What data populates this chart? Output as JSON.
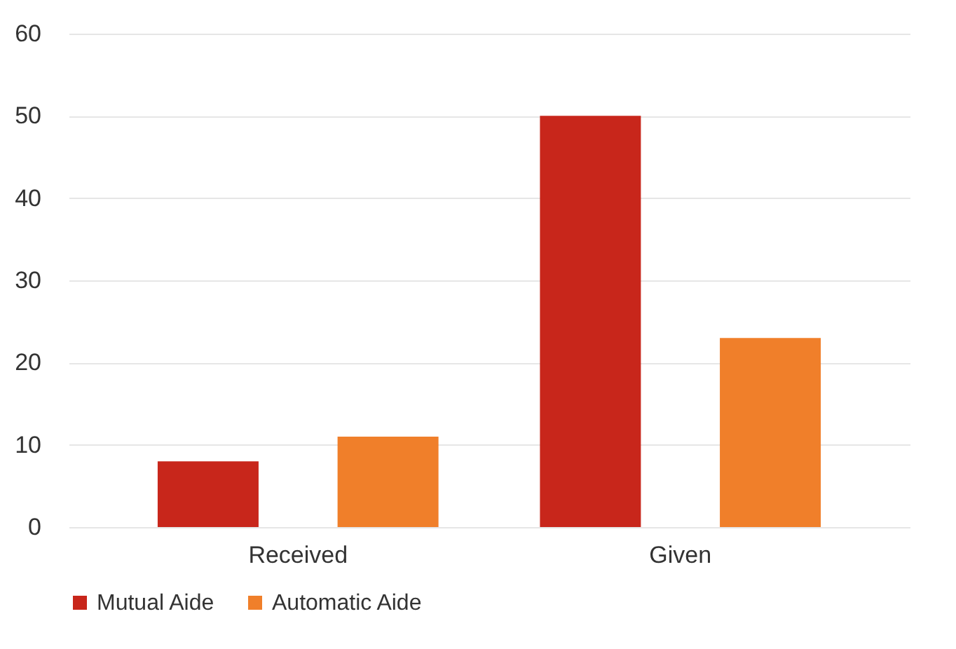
{
  "chart_data": {
    "type": "bar",
    "categories": [
      "Received",
      "Given"
    ],
    "series": [
      {
        "name": "Mutual Aide",
        "color": "#c8261b",
        "values": [
          8,
          50
        ]
      },
      {
        "name": "Automatic Aide",
        "color": "#f07f2a",
        "values": [
          11,
          23
        ]
      }
    ],
    "ylim": [
      0,
      60
    ],
    "yticks": [
      0,
      10,
      20,
      30,
      40,
      50,
      60
    ],
    "grid": "y",
    "legend": "bottom"
  }
}
